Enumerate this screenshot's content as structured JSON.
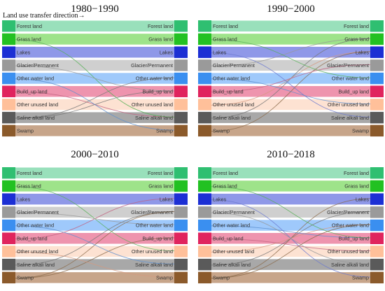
{
  "figure": {
    "direction_label": "Land use transfer direction→",
    "classes": [
      {
        "name": "Forest land",
        "color": "#2fbf71",
        "band": "#99e0bb"
      },
      {
        "name": "Grass land",
        "color": "#22c122",
        "band": "#9ee38a"
      },
      {
        "name": "Lakes",
        "color": "#1c2fd4",
        "band": "#8f98e8"
      },
      {
        "name": "Glacier/Permanent",
        "color": "#9a9a9a",
        "band": "#cfcfcf"
      },
      {
        "name": "Other water land",
        "color": "#3a8ff0",
        "band": "#9fc9fb"
      },
      {
        "name": "Build_up land",
        "color": "#e0245e",
        "band": "#ee94ae"
      },
      {
        "name": "Other unused land",
        "color": "#ffc09a",
        "band": "#fde2d2"
      },
      {
        "name": "Saline alkali land",
        "color": "#5a5a5a",
        "band": "#a8a8a8"
      },
      {
        "name": "Swamp",
        "color": "#8b5a2b",
        "band": "#c7a58a"
      }
    ],
    "panels": [
      {
        "title": "1980−1990",
        "flows": [
          [
            5,
            7,
            "#c06080"
          ],
          [
            7,
            4,
            "#777777"
          ],
          [
            7,
            5,
            "#777777"
          ],
          [
            1,
            7,
            "#55b055"
          ],
          [
            3,
            5,
            "#999999"
          ],
          [
            4,
            8,
            "#5a8fd0"
          ]
        ]
      },
      {
        "title": "1990−2000",
        "flows": [
          [
            7,
            1,
            "#777777"
          ],
          [
            6,
            2,
            "#d49a80"
          ],
          [
            8,
            2,
            "#8b6a4a"
          ],
          [
            5,
            3,
            "#c06080"
          ],
          [
            2,
            7,
            "#6a78d0"
          ],
          [
            4,
            6,
            "#5a8fd0"
          ],
          [
            3,
            1,
            "#999999"
          ],
          [
            1,
            4,
            "#55b055"
          ]
        ]
      },
      {
        "title": "2000−2010",
        "flows": [
          [
            7,
            3,
            "#777777"
          ],
          [
            8,
            3,
            "#8b6a4a"
          ],
          [
            8,
            5,
            "#8b6a4a"
          ],
          [
            5,
            2,
            "#c06080"
          ],
          [
            4,
            7,
            "#5a8fd0"
          ],
          [
            6,
            8,
            "#d49a80"
          ],
          [
            1,
            6,
            "#55b055"
          ],
          [
            3,
            4,
            "#999999"
          ]
        ]
      },
      {
        "title": "2010−2018",
        "flows": [
          [
            8,
            2,
            "#8b6a4a"
          ],
          [
            7,
            3,
            "#777777"
          ],
          [
            6,
            4,
            "#d49a80"
          ],
          [
            4,
            5,
            "#5a8fd0"
          ],
          [
            2,
            8,
            "#6a78d0"
          ],
          [
            5,
            6,
            "#c06080"
          ],
          [
            3,
            7,
            "#999999"
          ],
          [
            1,
            5,
            "#55b055"
          ],
          [
            8,
            4,
            "#8b6a4a"
          ]
        ]
      }
    ]
  }
}
